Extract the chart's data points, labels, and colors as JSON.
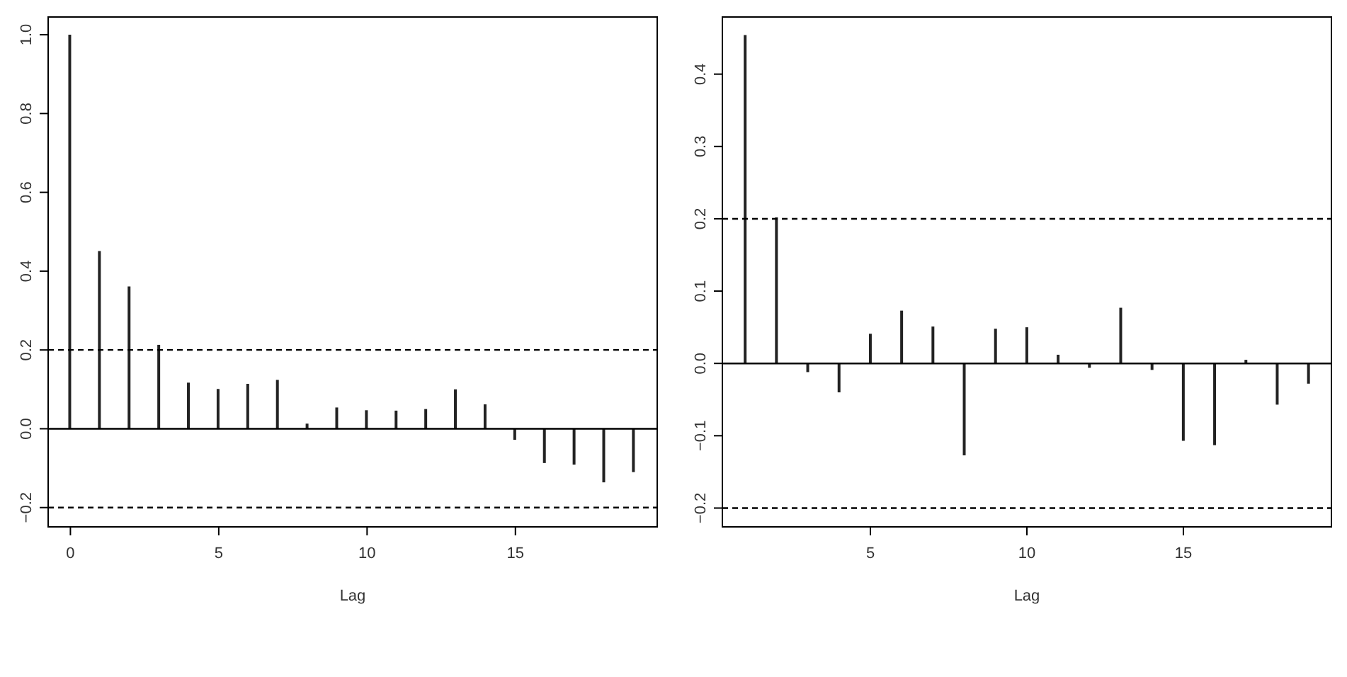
{
  "chart_data": [
    {
      "type": "bar",
      "xlabel": "Lag",
      "x": [
        0,
        1,
        2,
        3,
        4,
        5,
        6,
        7,
        8,
        9,
        10,
        11,
        12,
        13,
        14,
        15,
        16,
        17,
        18,
        19
      ],
      "series": [
        {
          "color": "#222222",
          "values": [
            1.0,
            0.451,
            0.361,
            0.213,
            0.117,
            0.101,
            0.114,
            0.124,
            0.013,
            0.054,
            0.047,
            0.046,
            0.05,
            0.1,
            0.062,
            -0.028,
            -0.087,
            -0.091,
            -0.136,
            -0.11
          ]
        }
      ],
      "xlim": [
        -0.75,
        19.78
      ],
      "xticks": [
        0,
        5,
        10,
        15
      ],
      "ylim": [
        -0.249,
        1.045
      ],
      "yticks": [
        {
          "value": -0.2,
          "label": "−0.2"
        },
        {
          "value": 0,
          "label": "0.0"
        },
        {
          "value": 0.2,
          "label": "0.2"
        },
        {
          "value": 0.4,
          "label": "0.4"
        },
        {
          "value": 0.6,
          "label": "0.6"
        },
        {
          "value": 0.8,
          "label": "0.8"
        },
        {
          "value": 1,
          "label": "1.0"
        }
      ],
      "ref_lines": [
        {
          "axis": "y",
          "value": 0,
          "color": "#000000",
          "line_style": "solid"
        },
        {
          "axis": "y",
          "value": 0.2,
          "color": "#000000",
          "line_style": "dashed"
        },
        {
          "axis": "y",
          "value": -0.2,
          "color": "#000000",
          "line_style": "dashed"
        }
      ],
      "grid": false,
      "legend": false
    },
    {
      "type": "bar",
      "xlabel": "Lag",
      "x": [
        1,
        2,
        3,
        4,
        5,
        6,
        7,
        8,
        9,
        10,
        11,
        12,
        13,
        14,
        15,
        16,
        17,
        18,
        19
      ],
      "series": [
        {
          "color": "#222222",
          "values": [
            0.454,
            0.202,
            -0.012,
            -0.04,
            0.041,
            0.073,
            0.051,
            -0.127,
            0.048,
            0.05,
            0.012,
            -0.006,
            0.077,
            -0.009,
            -0.107,
            -0.113,
            0.005,
            -0.057,
            -0.028
          ]
        }
      ],
      "xlim": [
        0.27,
        19.73
      ],
      "xticks": [
        5,
        10,
        15
      ],
      "ylim": [
        -0.226,
        0.479
      ],
      "yticks": [
        {
          "value": -0.2,
          "label": "−0.2"
        },
        {
          "value": -0.1,
          "label": "−0.1"
        },
        {
          "value": 0,
          "label": "0.0"
        },
        {
          "value": 0.1,
          "label": "0.1"
        },
        {
          "value": 0.2,
          "label": "0.2"
        },
        {
          "value": 0.3,
          "label": "0.3"
        },
        {
          "value": 0.4,
          "label": "0.4"
        }
      ],
      "ref_lines": [
        {
          "axis": "y",
          "value": 0,
          "color": "#000000",
          "line_style": "solid"
        },
        {
          "axis": "y",
          "value": 0.2,
          "color": "#000000",
          "line_style": "dashed"
        },
        {
          "axis": "y",
          "value": -0.2,
          "color": "#000000",
          "line_style": "dashed"
        }
      ],
      "grid": false,
      "legend": false
    }
  ]
}
